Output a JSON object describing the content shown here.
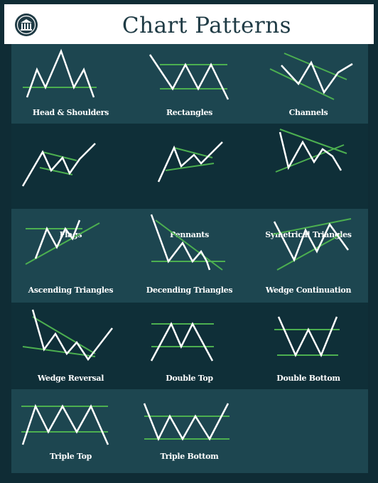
{
  "header": {
    "title": "Chart Patterns",
    "logo_icon": "bank-columns-icon"
  },
  "colors": {
    "background": "#0f2c35",
    "band_light": "#1d4650",
    "band_dark": "#0f2f38",
    "price_line": "#ffffff",
    "trend_line": "#4caf50",
    "title_text": "#1f3b45"
  },
  "patterns": [
    {
      "id": "head-and-shoulders",
      "label": "Head & Shoulders"
    },
    {
      "id": "rectangles",
      "label": "Rectangles"
    },
    {
      "id": "channels",
      "label": "Channels"
    },
    {
      "id": "flags",
      "label": "Flags"
    },
    {
      "id": "pennants",
      "label": "Pennants"
    },
    {
      "id": "symetrical-triangles",
      "label": "Symetrical Triangles"
    },
    {
      "id": "ascending-triangles",
      "label": "Ascending Triangles"
    },
    {
      "id": "decending-triangles",
      "label": "Decending Triangles"
    },
    {
      "id": "wedge-continuation",
      "label": "Wedge Continuation"
    },
    {
      "id": "wedge-reversal",
      "label": "Wedge Reversal"
    },
    {
      "id": "double-top",
      "label": "Double Top"
    },
    {
      "id": "double-bottom",
      "label": "Double Bottom"
    },
    {
      "id": "triple-top",
      "label": "Triple Top"
    },
    {
      "id": "triple-bottom",
      "label": "Triple Bottom"
    }
  ]
}
